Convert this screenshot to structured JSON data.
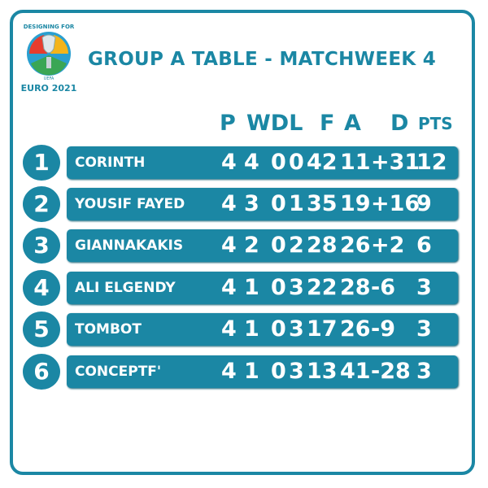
{
  "logo": {
    "top_text": "DESIGNING FOR",
    "uefa": "UEFA",
    "bottom_text": "EURO 2021"
  },
  "title": "GROUP A TABLE - MATCHWEEK 4",
  "columns": [
    "P",
    "WDL",
    "F",
    "A",
    "D",
    "PTS"
  ],
  "colors": {
    "accent": "#1b87a4",
    "text": "#ffffff"
  },
  "rows": [
    {
      "pos": "1",
      "team": "CORINTH",
      "p": "4",
      "w": "4",
      "d": "0",
      "l": "0",
      "f": "42",
      "a": "11",
      "gd": "+31",
      "pts": "12"
    },
    {
      "pos": "2",
      "team": "YOUSIF FAYED",
      "p": "4",
      "w": "3",
      "d": "0",
      "l": "1",
      "f": "35",
      "a": "19",
      "gd": "+16",
      "pts": "9"
    },
    {
      "pos": "3",
      "team": "GIANNAKAKIS",
      "p": "4",
      "w": "2",
      "d": "0",
      "l": "2",
      "f": "28",
      "a": "26",
      "gd": "+2",
      "pts": "6"
    },
    {
      "pos": "4",
      "team": "ALI ELGENDY",
      "p": "4",
      "w": "1",
      "d": "0",
      "l": "3",
      "f": "22",
      "a": "28",
      "gd": "-6",
      "pts": "3"
    },
    {
      "pos": "5",
      "team": "TOMBOT",
      "p": "4",
      "w": "1",
      "d": "0",
      "l": "3",
      "f": "17",
      "a": "26",
      "gd": "-9",
      "pts": "3"
    },
    {
      "pos": "6",
      "team": "CONCEPTF'",
      "p": "4",
      "w": "1",
      "d": "0",
      "l": "3",
      "f": "13",
      "a": "41",
      "gd": "-28",
      "pts": "3"
    }
  ]
}
